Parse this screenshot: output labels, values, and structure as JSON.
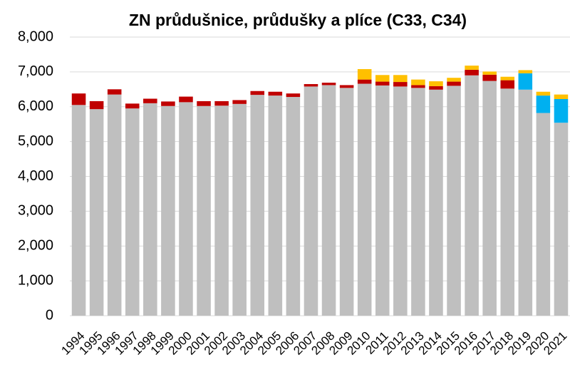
{
  "chart_data": {
    "type": "bar",
    "stacked": true,
    "title": "ZN průdušnice, průdušky a plíce (C33, C34)",
    "categories": [
      "1994",
      "1995",
      "1996",
      "1997",
      "1998",
      "1999",
      "2000",
      "2001",
      "2002",
      "2003",
      "2004",
      "2005",
      "2006",
      "2007",
      "2008",
      "2009",
      "2010",
      "2011",
      "2012",
      "2013",
      "2014",
      "2015",
      "2016",
      "2017",
      "2018",
      "2019",
      "2020",
      "2021"
    ],
    "series": [
      {
        "color": "#bfbfbf",
        "values": [
          6050,
          5930,
          6350,
          5950,
          6100,
          6020,
          6130,
          6020,
          6030,
          6080,
          6340,
          6320,
          6280,
          6580,
          6620,
          6540,
          6660,
          6610,
          6580,
          6540,
          6490,
          6600,
          6900,
          6740,
          6520,
          6490,
          5820,
          5540
        ]
      },
      {
        "color": "#c00000",
        "values": [
          330,
          230,
          150,
          140,
          130,
          130,
          160,
          140,
          130,
          110,
          110,
          110,
          100,
          70,
          70,
          80,
          120,
          110,
          130,
          80,
          100,
          120,
          160,
          180,
          240,
          0,
          0,
          0
        ]
      },
      {
        "color": "#00b0f0",
        "values": [
          0,
          0,
          0,
          0,
          0,
          0,
          0,
          0,
          0,
          0,
          0,
          0,
          0,
          0,
          0,
          0,
          0,
          0,
          0,
          0,
          0,
          0,
          0,
          0,
          0,
          470,
          500,
          680
        ]
      },
      {
        "color": "#ffc000",
        "values": [
          0,
          0,
          0,
          0,
          0,
          0,
          0,
          0,
          0,
          0,
          0,
          0,
          0,
          0,
          0,
          0,
          300,
          190,
          200,
          160,
          140,
          110,
          120,
          90,
          100,
          90,
          110,
          130
        ]
      }
    ],
    "ylim": [
      0,
      8000
    ],
    "yticks": [
      0,
      {
        "value": 1000,
        "label": "1,000"
      },
      {
        "value": 2000,
        "label": "2,000"
      },
      {
        "value": 3000,
        "label": "3,000"
      },
      {
        "value": 4000,
        "label": "4,000"
      },
      {
        "value": 5000,
        "label": "5,000"
      },
      {
        "value": 6000,
        "label": "6,000"
      },
      {
        "value": 7000,
        "label": "7,000"
      },
      {
        "value": 8000,
        "label": "8,000"
      }
    ],
    "grid": true
  }
}
